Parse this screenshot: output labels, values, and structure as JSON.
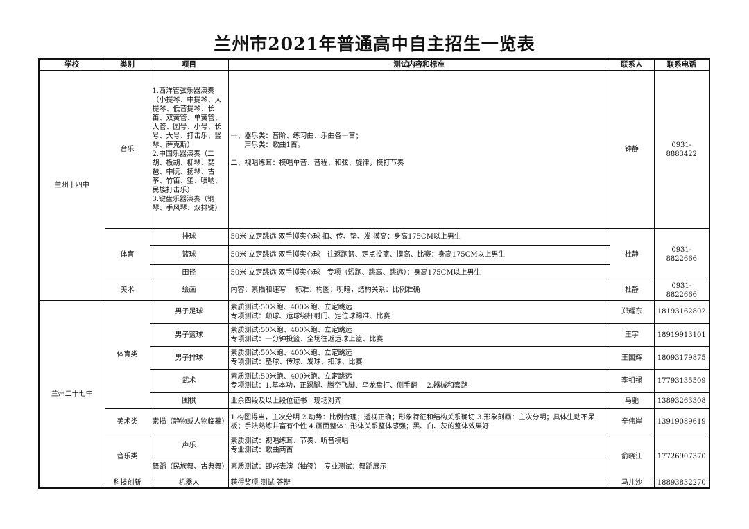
{
  "title": "兰州市2021年普通高中自主招生一览表",
  "headers": [
    "学校",
    "类别",
    "项目",
    "测试内容和标准",
    "联系人",
    "联系电话"
  ],
  "school1": {
    "name": "兰州十四中",
    "music": {
      "category": "音乐",
      "item": "1.西洋管弦乐器演奏（小提琴、中提琴、大提琴、低音提琴、长笛、双簧管、单簧管、大管、圆号、小号、长号、大号、打击乐、竖琴、萨克斯）\n2.中国乐器演奏（二胡、板胡、柳琴、琵琶、中阮、扬琴、古筝、竹笛、笙、唢呐、民族打击乐）\n3.键盘乐器演奏（钢琴、手风琴、双排键）",
      "content": "一、器乐类：音阶、练习曲、乐曲各一首；\n　　声乐类：歌曲1首。\n\n二、视唱练耳：模唱单音、音程、和弦、旋律，模打节奏",
      "contact": "钟静",
      "phone": "0931-8883422"
    },
    "sports": {
      "category": "体育",
      "contact": "杜静",
      "phone": "0931-8822666",
      "items": [
        {
          "item": "排球",
          "content": "50米 立定跳远 双手掷实心球 扣、传、垫、发 摸高：身高175CM以上男生"
        },
        {
          "item": "篮球",
          "content": "50米 立定跳远 双手掷实心球　往返跑篮、定点投篮、摸高、比赛：身高175CM以上男生"
        },
        {
          "item": "田径",
          "content": "50米 立定跳远 双手掷实心球　专项（短跑、跳高、跳远）：身高175CM以上男生"
        }
      ]
    },
    "art": {
      "category": "美术",
      "item": "绘画",
      "content": "内容：素描和速写　 标准：构图：明暗，结构关系：比例准确",
      "contact": "杜静",
      "phone": "0931-8822666"
    }
  },
  "school2": {
    "name": "兰州二十七中",
    "sports": {
      "category": "体育类",
      "items": [
        {
          "item": "男子足球",
          "content": "素质测试:50米跑、400米跑、立定跳远\n专项测试：颠球、运球绕杆射门、定位球踢准、比赛",
          "contact": "郑耀东",
          "phone": "18193162802"
        },
        {
          "item": "男子篮球",
          "content": "素质测试:50米跑、400米跑、立定跳远\n专项测试：一分钟投篮、全场往返运球上篮、比赛",
          "contact": "王宇",
          "phone": "18919913101"
        },
        {
          "item": "男子排球",
          "content": "素质测试:50米跑、400米跑、立定跳远\n专项测试：垫球、传球、发球、扣球、比赛",
          "contact": "王国辉",
          "phone": "18093179875"
        },
        {
          "item": "武术",
          "content": "素质测试:50米跑、400米跑、立定跳远\n专项测试：1.基本功，正踢腿、腾空飞脚、乌龙盘打、侧手翻　 2.器械和套路",
          "contact": "李祖禄",
          "phone": "17793135509"
        },
        {
          "item": "围棋",
          "content": "业余四段及以上段位证书　现场对弈",
          "contact": "马驰",
          "phone": "13893263308"
        }
      ]
    },
    "art": {
      "category": "美术类",
      "item": "素描（静物或人物临摹）",
      "content": "1.构图得当，主次分明 2.动势：比例合理；透视正确；形象特征和结构关系确切 3.形象刻画：主次分明；具体生动不呆板；手法熟练并富有个性 4.画面整体：形体关系整体感强；黑、白、灰的整体效果好",
      "contact": "辛伟岸",
      "phone": "13919089619"
    },
    "music": {
      "category": "音乐类",
      "contact": "俞晓江",
      "phone": "17726907370",
      "items": [
        {
          "item": "声乐",
          "content": "素质测试：视唱练耳、节奏、听音模唱\n专业测试：歌曲两首"
        },
        {
          "item": "舞蹈（民族舞、古典舞）",
          "content": "素质测试：即兴表演（抽签）　专业测试：舞蹈展示"
        }
      ]
    },
    "tech": {
      "category": "科技创新",
      "item": "机器人",
      "content": "获得奖项 测试 答辩",
      "contact": "马儿沙",
      "phone": "18893832270"
    }
  }
}
